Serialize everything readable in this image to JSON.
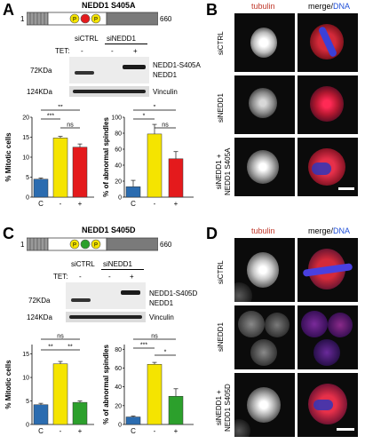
{
  "panelA": {
    "label": "A",
    "title": "NEDD1 S405A",
    "domain_start": "1",
    "domain_end": "660",
    "mutation_color": "#e41a1c",
    "blot": {
      "lanes_top": [
        "siCTRL",
        "siNEDD1"
      ],
      "tet_label": "TET:",
      "tet_values": [
        "-",
        "-",
        "+"
      ],
      "mw_72": "72KDa",
      "mw_124": "124KDa",
      "band_label_mut": "NEDD1-S405A",
      "band_label_wt": "NEDD1",
      "band_label_vinculin": "Vinculin"
    },
    "chart1": {
      "ylabel": "% Mitotic cells",
      "yticks": [
        "0",
        "5",
        "10",
        "15",
        "20"
      ],
      "xticks": [
        "C",
        "-",
        "+"
      ],
      "sig": [
        {
          "label": "**"
        },
        {
          "label": "***"
        },
        {
          "label": "ns"
        }
      ]
    },
    "chart2": {
      "ylabel": "% of abnormal spindles",
      "yticks": [
        "0",
        "20",
        "40",
        "60",
        "80",
        "100"
      ],
      "xticks": [
        "C",
        "-",
        "+"
      ],
      "sig": [
        {
          "label": "*"
        },
        {
          "label": "*"
        },
        {
          "label": "ns"
        }
      ]
    }
  },
  "panelB": {
    "label": "B",
    "col1": "tubulin",
    "col2_a": "merge/",
    "col2_b": "DNA",
    "rows": [
      "siCTRL",
      "siNEDD1",
      "siNEDD1 +\nNEDD1 S405A"
    ]
  },
  "panelC": {
    "label": "C",
    "title": "NEDD1 S405D",
    "domain_start": "1",
    "domain_end": "660",
    "mutation_color": "#2ca02c",
    "blot": {
      "lanes_top": [
        "siCTRL",
        "siNEDD1"
      ],
      "tet_label": "TET:",
      "tet_values": [
        "-",
        "-",
        "+"
      ],
      "mw_72": "72KDa",
      "mw_124": "124KDa",
      "band_label_mut": "NEDD1-S405D",
      "band_label_wt": "NEDD1",
      "band_label_vinculin": "Vinculin"
    },
    "chart1": {
      "ylabel": "% Mitotic cells",
      "yticks": [
        "0",
        "5",
        "10",
        "15"
      ],
      "xticks": [
        "C",
        "-",
        "+"
      ],
      "sig": [
        {
          "label": "ns"
        },
        {
          "label": "**"
        },
        {
          "label": "**"
        }
      ]
    },
    "chart2": {
      "ylabel": "% of abnormal spindles",
      "yticks": [
        "0",
        "20",
        "40",
        "60",
        "80"
      ],
      "xticks": [
        "C",
        "-",
        "+"
      ],
      "sig": [
        {
          "label": "ns"
        },
        {
          "label": "***"
        },
        {
          "label": "*"
        }
      ]
    }
  },
  "panelD": {
    "label": "D",
    "col1": "tubulin",
    "col2_a": "merge/",
    "col2_b": "DNA",
    "rows": [
      "siCTRL",
      "siNEDD1",
      "siNEDD1 +\nNEDD1 S405D"
    ]
  },
  "chart_data": [
    {
      "type": "bar",
      "categories": [
        "C",
        "-",
        "+"
      ],
      "values": [
        4.5,
        14.8,
        12.5
      ],
      "errors": [
        0.3,
        0.4,
        0.8
      ],
      "colors": [
        "#2b6cb0",
        "#f5e400",
        "#e41a1c"
      ],
      "ylabel": "% Mitotic cells",
      "ylim": [
        0,
        20
      ]
    },
    {
      "type": "bar",
      "categories": [
        "C",
        "-",
        "+"
      ],
      "values": [
        13,
        79,
        48
      ],
      "errors": [
        8,
        12,
        9
      ],
      "colors": [
        "#2b6cb0",
        "#f5e400",
        "#e41a1c"
      ],
      "ylabel": "% of abnormal spindles",
      "ylim": [
        0,
        100
      ]
    },
    {
      "type": "bar",
      "categories": [
        "C",
        "-",
        "+"
      ],
      "values": [
        4.2,
        12.9,
        4.7
      ],
      "errors": [
        0.3,
        0.5,
        0.3
      ],
      "colors": [
        "#2b6cb0",
        "#f5e400",
        "#2ca02c"
      ],
      "ylabel": "% Mitotic cells",
      "ylim": [
        0,
        17
      ]
    },
    {
      "type": "bar",
      "categories": [
        "C",
        "-",
        "+"
      ],
      "values": [
        8,
        64,
        30
      ],
      "errors": [
        1,
        2,
        8
      ],
      "colors": [
        "#2b6cb0",
        "#f5e400",
        "#2ca02c"
      ],
      "ylabel": "% of abnormal spindles",
      "ylim": [
        0,
        85
      ]
    }
  ]
}
